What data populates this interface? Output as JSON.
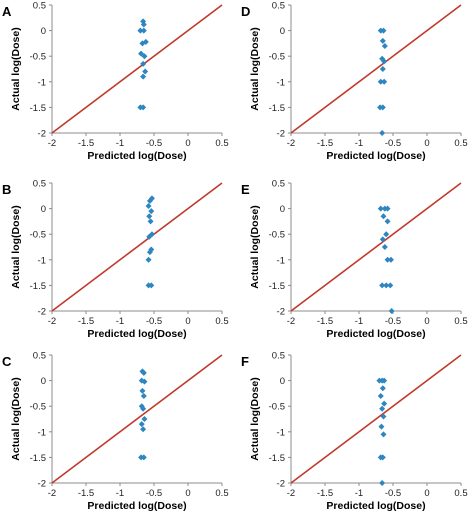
{
  "chart_data": [
    {
      "panel": "A",
      "type": "scatter",
      "xlabel": "Predicted log(Dose)",
      "ylabel": "Actual log(Dose)",
      "xlim": [
        -2,
        0.5
      ],
      "ylim": [
        -2,
        0.5
      ],
      "xticks": [
        "-2",
        "-1.5",
        "-1",
        "-0.5",
        "0",
        "0.5"
      ],
      "yticks": [
        "0.5",
        "0",
        "-0.5",
        "-1",
        "-1.5",
        "-2"
      ],
      "reference_line": {
        "label": "",
        "color": "#c0392b",
        "x": [
          -2,
          0.5
        ],
        "y": [
          -2,
          0.5
        ]
      },
      "marker_color": "#2e86c1",
      "points": [
        {
          "x": -0.66,
          "y": 0.18
        },
        {
          "x": -0.65,
          "y": 0.12
        },
        {
          "x": -0.7,
          "y": 0.0
        },
        {
          "x": -0.65,
          "y": 0.0
        },
        {
          "x": -0.62,
          "y": -0.22
        },
        {
          "x": -0.67,
          "y": -0.25
        },
        {
          "x": -0.69,
          "y": -0.45
        },
        {
          "x": -0.64,
          "y": -0.5
        },
        {
          "x": -0.66,
          "y": -0.65
        },
        {
          "x": -0.63,
          "y": -0.8
        },
        {
          "x": -0.66,
          "y": -0.9
        },
        {
          "x": -0.7,
          "y": -1.5
        },
        {
          "x": -0.66,
          "y": -1.5
        }
      ]
    },
    {
      "panel": "D",
      "type": "scatter",
      "xlabel": "Predicted log(Dose)",
      "ylabel": "Actual log(Dose)",
      "xlim": [
        -2,
        0.5
      ],
      "ylim": [
        -2,
        0.5
      ],
      "xticks": [
        "-2",
        "-1.5",
        "-1",
        "-0.5",
        "0",
        "0.5"
      ],
      "yticks": [
        "0.5",
        "0",
        "-0.5",
        "-1",
        "-1.5",
        "-2"
      ],
      "reference_line": {
        "label": "",
        "color": "#c0392b",
        "x": [
          -2,
          0.5
        ],
        "y": [
          -2,
          0.5
        ]
      },
      "marker_color": "#2e86c1",
      "points": [
        {
          "x": -0.68,
          "y": 0.0
        },
        {
          "x": -0.64,
          "y": 0.0
        },
        {
          "x": -0.65,
          "y": -0.2
        },
        {
          "x": -0.62,
          "y": -0.3
        },
        {
          "x": -0.66,
          "y": -0.55
        },
        {
          "x": -0.63,
          "y": -0.6
        },
        {
          "x": -0.65,
          "y": -0.75
        },
        {
          "x": -0.68,
          "y": -1.0
        },
        {
          "x": -0.63,
          "y": -1.0
        },
        {
          "x": -0.69,
          "y": -1.5
        },
        {
          "x": -0.65,
          "y": -1.5
        },
        {
          "x": -0.66,
          "y": -2.0
        }
      ]
    },
    {
      "panel": "B",
      "type": "scatter",
      "xlabel": "Predicted log(Dose)",
      "ylabel": "Actual log(Dose)",
      "xlim": [
        -2,
        0.5
      ],
      "ylim": [
        -2,
        0.5
      ],
      "xticks": [
        "-2",
        "-1.5",
        "-1",
        "-0.5",
        "0",
        "0.5"
      ],
      "yticks": [
        "0.5",
        "0",
        "-0.5",
        "-1",
        "-1.5",
        "-2"
      ],
      "reference_line": {
        "label": "",
        "color": "#c0392b",
        "x": [
          -2,
          0.5
        ],
        "y": [
          -2,
          0.5
        ]
      },
      "marker_color": "#2e86c1",
      "points": [
        {
          "x": -0.53,
          "y": 0.2
        },
        {
          "x": -0.56,
          "y": 0.15
        },
        {
          "x": -0.58,
          "y": 0.05
        },
        {
          "x": -0.54,
          "y": -0.05
        },
        {
          "x": -0.57,
          "y": -0.15
        },
        {
          "x": -0.55,
          "y": -0.25
        },
        {
          "x": -0.53,
          "y": -0.5
        },
        {
          "x": -0.57,
          "y": -0.55
        },
        {
          "x": -0.54,
          "y": -0.8
        },
        {
          "x": -0.56,
          "y": -0.85
        },
        {
          "x": -0.58,
          "y": -1.0
        },
        {
          "x": -0.58,
          "y": -1.5
        },
        {
          "x": -0.54,
          "y": -1.5
        }
      ]
    },
    {
      "panel": "E",
      "type": "scatter",
      "xlabel": "Predicted log(Dose)",
      "ylabel": "Actual log(Dose)",
      "xlim": [
        -2,
        0.5
      ],
      "ylim": [
        -2,
        0.5
      ],
      "xticks": [
        "-2",
        "-1.5",
        "-1",
        "-0.5",
        "0",
        "0.5"
      ],
      "yticks": [
        "0.5",
        "0",
        "-0.5",
        "-1",
        "-1.5",
        "-2"
      ],
      "reference_line": {
        "label": "",
        "color": "#c0392b",
        "x": [
          -2,
          0.5
        ],
        "y": [
          -2,
          0.5
        ]
      },
      "marker_color": "#2e86c1",
      "points": [
        {
          "x": -0.68,
          "y": 0.0
        },
        {
          "x": -0.62,
          "y": 0.0
        },
        {
          "x": -0.58,
          "y": 0.0
        },
        {
          "x": -0.64,
          "y": -0.15
        },
        {
          "x": -0.58,
          "y": -0.25
        },
        {
          "x": -0.6,
          "y": -0.5
        },
        {
          "x": -0.65,
          "y": -0.6
        },
        {
          "x": -0.62,
          "y": -0.75
        },
        {
          "x": -0.58,
          "y": -1.0
        },
        {
          "x": -0.53,
          "y": -1.0
        },
        {
          "x": -0.66,
          "y": -1.5
        },
        {
          "x": -0.6,
          "y": -1.5
        },
        {
          "x": -0.54,
          "y": -1.5
        },
        {
          "x": -0.52,
          "y": -2.0
        }
      ]
    },
    {
      "panel": "C",
      "type": "scatter",
      "xlabel": "Predicted log(Dose)",
      "ylabel": "Actual log(Dose)",
      "xlim": [
        -2,
        0.5
      ],
      "ylim": [
        -2,
        0.5
      ],
      "xticks": [
        "-2",
        "-1.5",
        "-1",
        "-0.5",
        "0",
        "0.5"
      ],
      "yticks": [
        "0.5",
        "0",
        "-0.5",
        "-1",
        "-1.5",
        "-2"
      ],
      "reference_line": {
        "label": "",
        "color": "#c0392b",
        "x": [
          -2,
          0.5
        ],
        "y": [
          -2,
          0.5
        ]
      },
      "marker_color": "#2e86c1",
      "points": [
        {
          "x": -0.67,
          "y": 0.18
        },
        {
          "x": -0.65,
          "y": 0.15
        },
        {
          "x": -0.68,
          "y": 0.0
        },
        {
          "x": -0.64,
          "y": -0.02
        },
        {
          "x": -0.67,
          "y": -0.2
        },
        {
          "x": -0.65,
          "y": -0.3
        },
        {
          "x": -0.68,
          "y": -0.5
        },
        {
          "x": -0.66,
          "y": -0.55
        },
        {
          "x": -0.64,
          "y": -0.75
        },
        {
          "x": -0.68,
          "y": -0.85
        },
        {
          "x": -0.66,
          "y": -0.95
        },
        {
          "x": -0.69,
          "y": -1.5
        },
        {
          "x": -0.65,
          "y": -1.5
        }
      ]
    },
    {
      "panel": "F",
      "type": "scatter",
      "xlabel": "Predicted log(Dose)",
      "ylabel": "Actual log(Dose)",
      "xlim": [
        -2,
        0.5
      ],
      "ylim": [
        -2,
        0.5
      ],
      "xticks": [
        "-2",
        "-1.5",
        "-1",
        "-0.5",
        "0",
        "0.5"
      ],
      "yticks": [
        "0.5",
        "0",
        "-0.5",
        "-1",
        "-1.5",
        "-2"
      ],
      "reference_line": {
        "label": "",
        "color": "#c0392b",
        "x": [
          -2,
          0.5
        ],
        "y": [
          -2,
          0.5
        ]
      },
      "marker_color": "#2e86c1",
      "points": [
        {
          "x": -0.7,
          "y": 0.0
        },
        {
          "x": -0.66,
          "y": 0.0
        },
        {
          "x": -0.63,
          "y": 0.0
        },
        {
          "x": -0.65,
          "y": -0.15
        },
        {
          "x": -0.68,
          "y": -0.3
        },
        {
          "x": -0.63,
          "y": -0.45
        },
        {
          "x": -0.66,
          "y": -0.55
        },
        {
          "x": -0.64,
          "y": -0.7
        },
        {
          "x": -0.67,
          "y": -0.9
        },
        {
          "x": -0.64,
          "y": -1.05
        },
        {
          "x": -0.68,
          "y": -1.5
        },
        {
          "x": -0.65,
          "y": -1.5
        },
        {
          "x": -0.66,
          "y": -2.0
        }
      ]
    }
  ]
}
